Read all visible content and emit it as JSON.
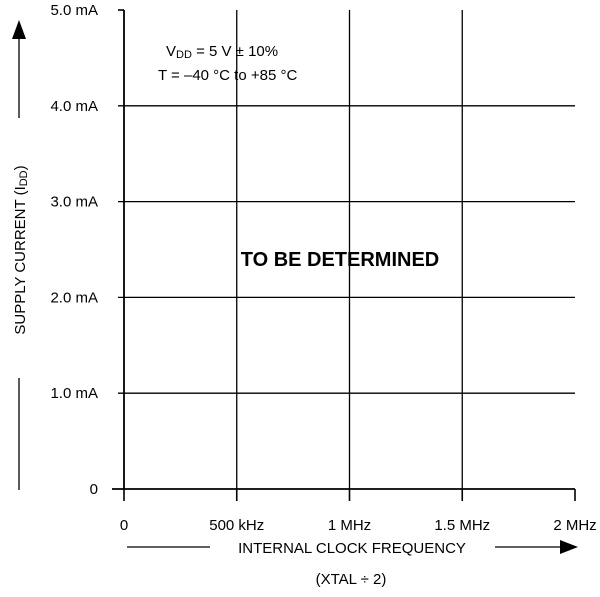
{
  "chart_data": {
    "type": "line",
    "title": "",
    "xlabel": "INTERNAL CLOCK FREQUENCY",
    "xlabel_sub": "(XTAL ÷ 2)",
    "ylabel": "SUPPLY CURRENT (I",
    "ylabel_sub": "DD",
    "ylabel_close": ")",
    "x_ticks": [
      {
        "value": 0,
        "label": "0"
      },
      {
        "value": 0.5,
        "label": "500 kHz"
      },
      {
        "value": 1.0,
        "label": "1 MHz"
      },
      {
        "value": 1.5,
        "label": "1.5 MHz"
      },
      {
        "value": 2.0,
        "label": "2 MHz"
      }
    ],
    "y_ticks": [
      {
        "value": 0,
        "label": "0"
      },
      {
        "value": 1.0,
        "label": "1.0 mA"
      },
      {
        "value": 2.0,
        "label": "2.0 mA"
      },
      {
        "value": 3.0,
        "label": "3.0 mA"
      },
      {
        "value": 4.0,
        "label": "4.0 mA"
      },
      {
        "value": 5.0,
        "label": "5.0 mA"
      }
    ],
    "xlim": [
      0,
      2.0
    ],
    "ylim": [
      0,
      5.0
    ],
    "grid": true,
    "series": [],
    "annotations": {
      "condition_line1_prefix": "V",
      "condition_line1_sub": "DD",
      "condition_line1_suffix": " = 5 V ± 10%",
      "condition_line2": "T = –40 °C to +85 °C",
      "placeholder": "TO BE DETERMINED"
    }
  }
}
